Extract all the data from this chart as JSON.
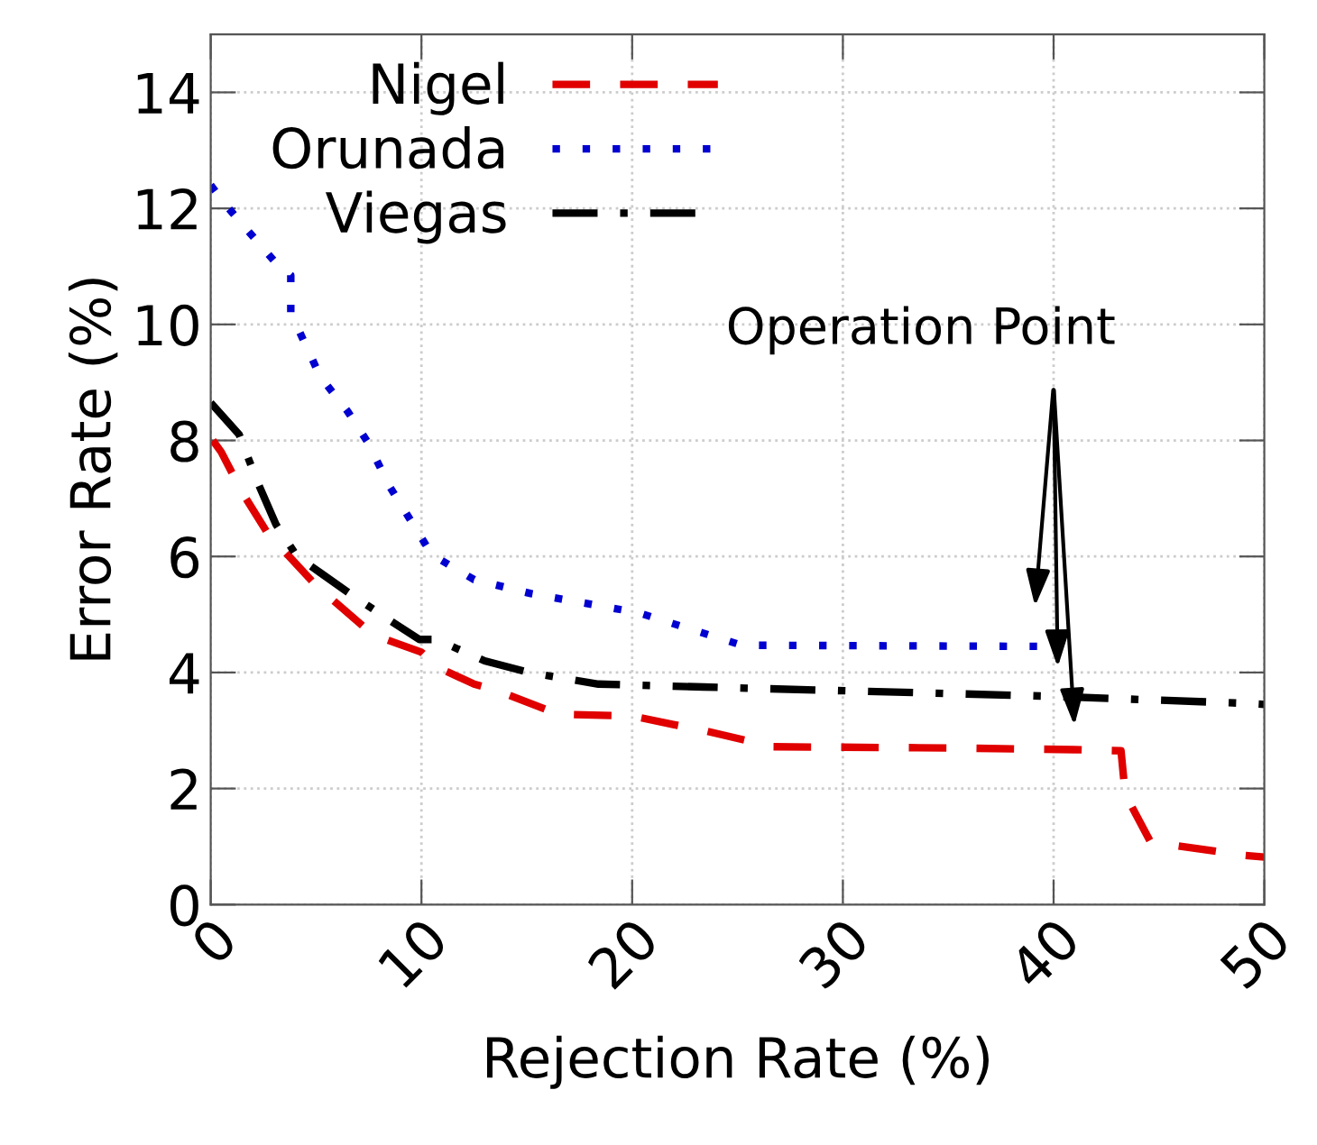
{
  "chart_data": {
    "type": "line",
    "xlabel": "Rejection Rate (%)",
    "ylabel": "Error Rate (%)",
    "xlim": [
      0,
      50
    ],
    "ylim": [
      0,
      15
    ],
    "xticks": [
      0,
      10,
      20,
      30,
      40,
      50
    ],
    "yticks": [
      0,
      2,
      4,
      6,
      8,
      10,
      12,
      14
    ],
    "grid": true,
    "legend": "top left",
    "marker": "none",
    "annotations": [
      "Operation Point"
    ],
    "series": [
      {
        "name": "Nigel",
        "color": "#e00000",
        "line_style": "dashed",
        "x": [
          0.1,
          0.5,
          1.5,
          2.7,
          5.0,
          7.7,
          10.0,
          10.7,
          12.5,
          13.5,
          16.5,
          20,
          22,
          23.4,
          26.7,
          35,
          41,
          43.2,
          43.4,
          44.6,
          49,
          50
        ],
        "values": [
          8.0,
          7.8,
          7.1,
          6.4,
          5.5,
          4.65,
          4.35,
          4.1,
          3.8,
          3.7,
          3.28,
          3.25,
          3.1,
          3.0,
          2.72,
          2.7,
          2.67,
          2.65,
          1.9,
          1.08,
          0.85,
          0.82
        ]
      },
      {
        "name": "Orunada",
        "color": "#0000d0",
        "line_style": "dotted",
        "x": [
          0,
          0.85,
          1.8,
          3.0,
          3.8,
          3.8,
          5.2,
          6.5,
          7.45,
          8.5,
          10.5,
          12.5,
          15.2,
          20.3,
          25.2,
          39.3
        ],
        "values": [
          12.4,
          12.0,
          11.6,
          11.1,
          10.85,
          10.2,
          9.1,
          8.5,
          7.97,
          7.2,
          6.03,
          5.6,
          5.36,
          5.03,
          4.47,
          4.45
        ]
      },
      {
        "name": "Viegas",
        "color": "#000000",
        "line_style": "dashdot",
        "x": [
          0,
          1.35,
          2.2,
          3.1,
          4.1,
          5.2,
          6.6,
          8.5,
          9.9,
          10.7,
          13,
          15.1,
          18.4,
          23.4,
          39.9,
          49,
          50
        ],
        "values": [
          8.65,
          8.1,
          7.3,
          6.55,
          6.0,
          5.72,
          5.36,
          4.9,
          4.57,
          4.57,
          4.2,
          4.0,
          3.8,
          3.75,
          3.59,
          3.47,
          3.45
        ]
      }
    ]
  }
}
